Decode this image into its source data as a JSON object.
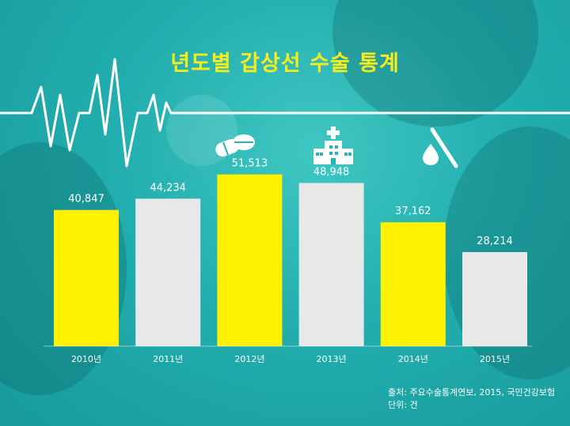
{
  "colors": {
    "highlight": "#fff200",
    "neutral": "#e8e8e8",
    "background": "#24b3b2",
    "title": "#f5ee1c"
  },
  "icons": [
    "pills-icon",
    "hospital-icon",
    "scalpel-blood-icon"
  ],
  "chart_data": {
    "type": "bar",
    "title": "년도별 갑상선 수술 통계",
    "categories": [
      "2010년",
      "2011년",
      "2012년",
      "2013년",
      "2014년",
      "2015년"
    ],
    "values": [
      40847,
      44234,
      51513,
      48948,
      37162,
      28214
    ],
    "value_labels": [
      "40,847",
      "44,234",
      "51,513",
      "48,948",
      "37,162",
      "28,214"
    ],
    "bar_colors": [
      "#fff200",
      "#e8e8e8",
      "#fff200",
      "#e8e8e8",
      "#fff200",
      "#e8e8e8"
    ],
    "ylim": [
      0,
      64000
    ],
    "xlabel": "",
    "ylabel": "",
    "grid": false
  },
  "footer": {
    "source": "출처: 주요수술통계연보, 2015, 국민건강보험",
    "unit": "단위: 건"
  }
}
